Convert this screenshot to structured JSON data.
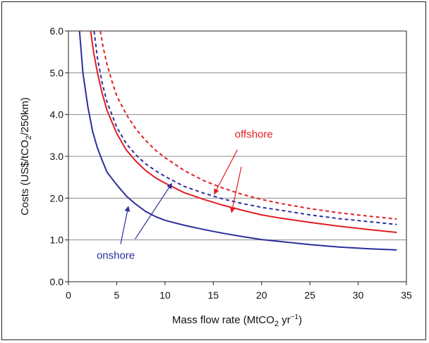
{
  "chart_data": {
    "type": "line",
    "xlabel": "Mass flow rate (MtCO₂ yr⁻¹)",
    "xlabel_parts": {
      "pre": "Mass flow rate (MtCO",
      "sub": "2",
      "mid": " yr",
      "sup": "−1",
      "post": ")"
    },
    "ylabel": "Costs (US$/tCO₂/250km)",
    "ylabel_parts": {
      "pre": "Costs (US$/tCO",
      "sub": "2",
      "post": "/250km)"
    },
    "xlim": [
      0,
      35
    ],
    "ylim": [
      0.0,
      6.0
    ],
    "x_ticks": [
      "0",
      "5",
      "10",
      "15",
      "20",
      "25",
      "30",
      "35"
    ],
    "y_ticks": [
      "0.0",
      "1.0",
      "2.0",
      "3.0",
      "4.0",
      "5.0",
      "6.0"
    ],
    "grid": "horizontal",
    "series": [
      {
        "group": "onshore",
        "style": "solid",
        "color": "#2b2f9c",
        "x": [
          1.15,
          1.5,
          2,
          2.5,
          3,
          3.5,
          4,
          5,
          6,
          7,
          8,
          9,
          10,
          12,
          14,
          16,
          18,
          20,
          22,
          25,
          28,
          31,
          34
        ],
        "y": [
          6.0,
          5.0,
          4.2,
          3.6,
          3.2,
          2.9,
          2.62,
          2.32,
          2.05,
          1.85,
          1.68,
          1.56,
          1.47,
          1.35,
          1.25,
          1.16,
          1.08,
          1.01,
          0.96,
          0.89,
          0.83,
          0.79,
          0.76
        ]
      },
      {
        "group": "onshore",
        "style": "dashed",
        "color": "#2b2f9c",
        "x": [
          2.65,
          3,
          3.5,
          4,
          5,
          6,
          7,
          8,
          9,
          10,
          12,
          14,
          16,
          18,
          20,
          22,
          25,
          28,
          31,
          34
        ],
        "y": [
          6.0,
          5.35,
          4.75,
          4.3,
          3.7,
          3.3,
          3.03,
          2.82,
          2.66,
          2.52,
          2.28,
          2.12,
          1.98,
          1.87,
          1.78,
          1.71,
          1.6,
          1.51,
          1.44,
          1.37
        ]
      },
      {
        "group": "offshore",
        "style": "solid",
        "color": "#e01e24",
        "x": [
          2.3,
          2.6,
          3,
          3.5,
          4,
          5,
          6,
          7,
          8,
          9,
          10,
          12,
          14,
          16,
          18,
          20,
          22,
          25,
          28,
          31,
          34
        ],
        "y": [
          6.0,
          5.5,
          5.0,
          4.5,
          4.1,
          3.55,
          3.15,
          2.88,
          2.66,
          2.49,
          2.36,
          2.13,
          1.97,
          1.83,
          1.71,
          1.6,
          1.52,
          1.42,
          1.33,
          1.25,
          1.18
        ]
      },
      {
        "group": "offshore",
        "style": "dashed",
        "color": "#e01e24",
        "x": [
          3.3,
          3.6,
          4,
          4.5,
          5,
          6,
          7,
          8,
          9,
          10,
          12,
          14,
          16,
          18,
          20,
          22,
          25,
          28,
          31,
          34
        ],
        "y": [
          6.0,
          5.6,
          5.2,
          4.8,
          4.45,
          4.0,
          3.65,
          3.38,
          3.15,
          2.97,
          2.66,
          2.42,
          2.24,
          2.09,
          1.97,
          1.87,
          1.75,
          1.65,
          1.57,
          1.5
        ]
      }
    ],
    "annotations": [
      {
        "text": "offshore",
        "color": "#e01e24",
        "x": 19.2,
        "y": 3.45,
        "arrows": [
          [
            17.5,
            3.16,
            15.1,
            2.1
          ],
          [
            17.9,
            2.75,
            16.9,
            1.66
          ]
        ]
      },
      {
        "text": "onshore",
        "color": "#2b2f9c",
        "x": 4.9,
        "y": 0.55,
        "arrows": [
          [
            5.4,
            0.9,
            6.2,
            1.8
          ],
          [
            6.9,
            1.02,
            10.7,
            2.35
          ]
        ]
      }
    ]
  }
}
